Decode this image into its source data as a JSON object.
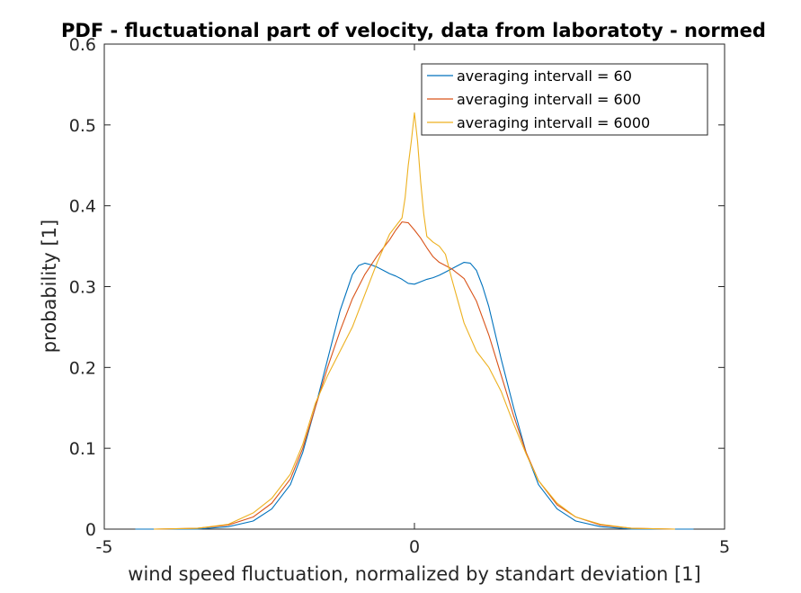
{
  "chart_data": {
    "type": "line",
    "title": "PDF - fluctuational part of velocity, data from laboratoty - normed",
    "xlabel": "wind speed fluctuation, normalized by standart deviation [1]",
    "ylabel": "probability [1]",
    "xlim": [
      -5,
      5
    ],
    "ylim": [
      0,
      0.6
    ],
    "xticks": [
      -5,
      0,
      5
    ],
    "xtick_labels": [
      "-5",
      "0",
      "5"
    ],
    "yticks": [
      0,
      0.1,
      0.2,
      0.3,
      0.4,
      0.5,
      0.6
    ],
    "ytick_labels": [
      "0",
      "0.1",
      "0.2",
      "0.3",
      "0.4",
      "0.5",
      "0.6"
    ],
    "grid": false,
    "legend_position": "top-right",
    "series": [
      {
        "name": "averaging intervall = 60",
        "color": "#0072BD",
        "x": [
          -4.5,
          -3.5,
          -3.0,
          -2.6,
          -2.3,
          -2.0,
          -1.8,
          -1.6,
          -1.4,
          -1.2,
          -1.0,
          -0.9,
          -0.8,
          -0.7,
          -0.6,
          -0.5,
          -0.4,
          -0.3,
          -0.2,
          -0.1,
          0.0,
          0.1,
          0.2,
          0.3,
          0.4,
          0.5,
          0.6,
          0.7,
          0.8,
          0.9,
          1.0,
          1.1,
          1.2,
          1.4,
          1.6,
          1.8,
          2.0,
          2.3,
          2.6,
          3.0,
          3.5,
          4.5
        ],
        "y": [
          0.0,
          0.0,
          0.003,
          0.01,
          0.025,
          0.055,
          0.095,
          0.15,
          0.21,
          0.27,
          0.315,
          0.326,
          0.329,
          0.327,
          0.324,
          0.32,
          0.316,
          0.313,
          0.309,
          0.304,
          0.303,
          0.306,
          0.309,
          0.311,
          0.314,
          0.318,
          0.322,
          0.326,
          0.33,
          0.329,
          0.32,
          0.3,
          0.275,
          0.21,
          0.15,
          0.095,
          0.055,
          0.025,
          0.01,
          0.003,
          0.0,
          0.0
        ]
      },
      {
        "name": "averaging intervall = 600",
        "color": "#D95319",
        "x": [
          -4.2,
          -3.5,
          -3.0,
          -2.6,
          -2.3,
          -2.0,
          -1.8,
          -1.6,
          -1.4,
          -1.2,
          -1.0,
          -0.8,
          -0.6,
          -0.4,
          -0.3,
          -0.2,
          -0.1,
          0.0,
          0.1,
          0.2,
          0.3,
          0.4,
          0.5,
          0.6,
          0.8,
          1.0,
          1.2,
          1.4,
          1.6,
          1.8,
          2.0,
          2.3,
          2.6,
          3.0,
          3.5,
          4.2
        ],
        "y": [
          0.0,
          0.001,
          0.005,
          0.015,
          0.032,
          0.062,
          0.1,
          0.15,
          0.2,
          0.245,
          0.285,
          0.315,
          0.338,
          0.358,
          0.37,
          0.38,
          0.379,
          0.37,
          0.36,
          0.348,
          0.337,
          0.33,
          0.326,
          0.322,
          0.31,
          0.282,
          0.24,
          0.19,
          0.14,
          0.095,
          0.06,
          0.03,
          0.015,
          0.005,
          0.001,
          0.0
        ]
      },
      {
        "name": "averaging intervall = 6000",
        "color": "#EDB120",
        "x": [
          -4.2,
          -3.5,
          -3.0,
          -2.6,
          -2.3,
          -2.0,
          -1.8,
          -1.6,
          -1.4,
          -1.2,
          -1.0,
          -0.8,
          -0.6,
          -0.4,
          -0.3,
          -0.2,
          -0.15,
          -0.1,
          -0.05,
          0.0,
          0.05,
          0.1,
          0.15,
          0.2,
          0.3,
          0.4,
          0.5,
          0.6,
          0.8,
          1.0,
          1.2,
          1.4,
          1.6,
          1.8,
          2.0,
          2.3,
          2.6,
          3.0,
          3.5,
          4.2
        ],
        "y": [
          0.0,
          0.001,
          0.006,
          0.02,
          0.038,
          0.068,
          0.105,
          0.155,
          0.19,
          0.22,
          0.25,
          0.29,
          0.33,
          0.365,
          0.375,
          0.385,
          0.41,
          0.45,
          0.48,
          0.515,
          0.48,
          0.43,
          0.39,
          0.362,
          0.355,
          0.35,
          0.34,
          0.31,
          0.255,
          0.22,
          0.2,
          0.17,
          0.13,
          0.093,
          0.06,
          0.032,
          0.015,
          0.006,
          0.001,
          0.0
        ]
      }
    ]
  }
}
